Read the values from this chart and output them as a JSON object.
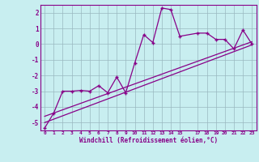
{
  "title": "",
  "xlabel": "Windchill (Refroidissement éolien,°C)",
  "bg_color": "#c8eef0",
  "line_color": "#880088",
  "ylim": [
    -5.5,
    2.5
  ],
  "xlim": [
    -0.5,
    23.5
  ],
  "yticks": [
    -5,
    -4,
    -3,
    -2,
    -1,
    0,
    1,
    2
  ],
  "xticks": [
    0,
    1,
    2,
    3,
    4,
    5,
    6,
    7,
    8,
    9,
    10,
    11,
    12,
    13,
    14,
    15,
    17,
    18,
    19,
    20,
    21,
    22,
    23
  ],
  "line1_x": [
    0,
    1,
    2,
    3,
    4,
    5,
    6,
    7,
    8,
    9,
    10,
    11,
    12,
    13,
    14,
    15,
    17,
    18,
    19,
    20,
    21,
    22,
    23
  ],
  "line1_y": [
    -5.35,
    -4.4,
    -3.0,
    -3.0,
    -2.95,
    -3.0,
    -2.65,
    -3.1,
    -2.1,
    -3.1,
    -1.2,
    0.6,
    0.1,
    2.3,
    2.2,
    0.5,
    0.7,
    0.7,
    0.3,
    0.3,
    -0.3,
    0.9,
    0.0
  ],
  "line2_x": [
    0,
    23
  ],
  "line2_y": [
    -5.0,
    -0.05
  ],
  "line3_x": [
    0,
    23
  ],
  "line3_y": [
    -4.6,
    0.15
  ],
  "grid_color": "#9ab8c0",
  "marker": "+"
}
